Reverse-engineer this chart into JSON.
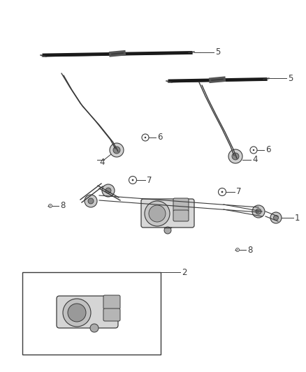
{
  "bg_color": "#ffffff",
  "line_color": "#3a3a3a",
  "figsize": [
    4.38,
    5.33
  ],
  "dpi": 100,
  "label_fontsize": 8.5
}
